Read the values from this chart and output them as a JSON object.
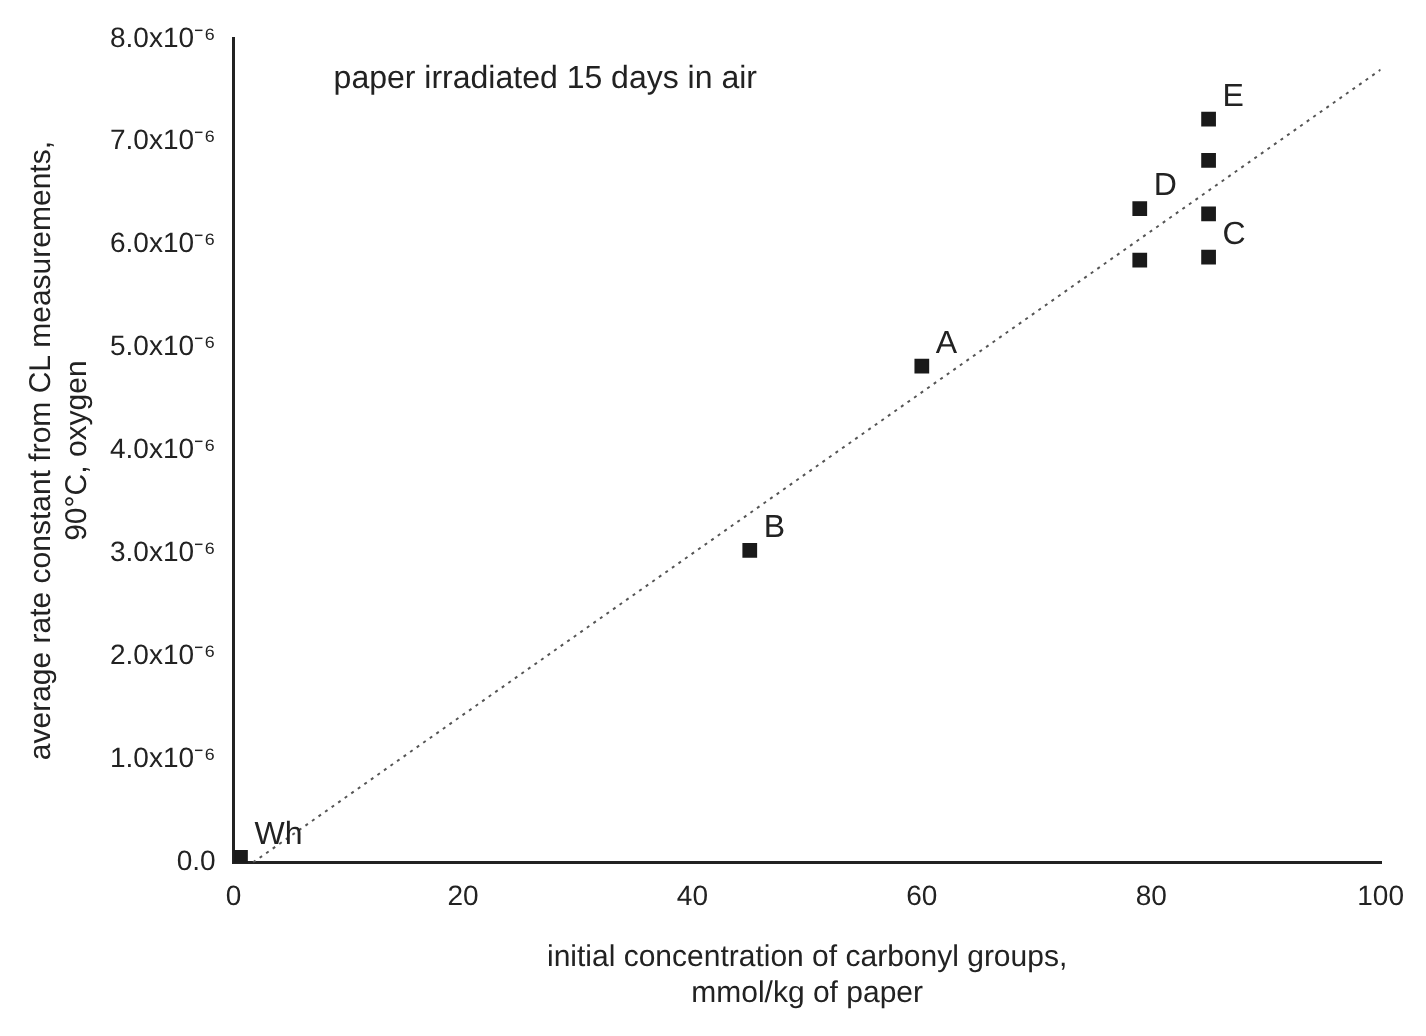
{
  "chart_data": {
    "type": "scatter",
    "xlabel": "initial concentration of carbonyl groups,\nmmol/kg of paper",
    "ylabel": "average rate constant from CL measurements,\n90°C, oxygen",
    "xlim": [
      0,
      100
    ],
    "xticks": [
      0,
      20,
      40,
      60,
      80,
      100
    ],
    "ylim": [
      0,
      8e-06
    ],
    "yticks": [
      {
        "value": 0,
        "label": "0.0"
      },
      {
        "value": 1e-06,
        "label": "1.0x10⁻⁶"
      },
      {
        "value": 2e-06,
        "label": "2.0x10⁻⁶"
      },
      {
        "value": 3e-06,
        "label": "3.0x10⁻⁶"
      },
      {
        "value": 4e-06,
        "label": "4.0x10⁻⁶"
      },
      {
        "value": 5e-06,
        "label": "5.0x10⁻⁶"
      },
      {
        "value": 6e-06,
        "label": "6.0x10⁻⁶"
      },
      {
        "value": 7e-06,
        "label": "7.0x10⁻⁶"
      },
      {
        "value": 8e-06,
        "label": "8.0x10⁻⁶"
      }
    ],
    "grid": false,
    "legend": false,
    "marker": "square",
    "series": [
      {
        "type": "scatter",
        "color": "#1a1a1a",
        "x": [
          0.6,
          45,
          60,
          79,
          79,
          85,
          85,
          85,
          85
        ],
        "values": [
          5e-08,
          3.03e-06,
          4.82e-06,
          5.85e-06,
          6.35e-06,
          5.88e-06,
          6.3e-06,
          6.82e-06,
          7.22e-06
        ]
      },
      {
        "type": "line",
        "color": "#555555",
        "line_style": "dotted",
        "marker": "none",
        "x": [
          1.7,
          100
        ],
        "values": [
          0,
          7.7e-06
        ]
      }
    ],
    "annotations": [
      "paper irradiated 15 days in air",
      {
        "text": "A",
        "x": 60,
        "y": 4.82e-06
      },
      {
        "text": "B",
        "x": 45,
        "y": 3.03e-06
      },
      {
        "text": "C",
        "x": 85,
        "y": 5.88e-06
      },
      {
        "text": "D",
        "x": 79,
        "y": 6.35e-06
      },
      {
        "text": "E",
        "x": 85,
        "y": 7.22e-06
      },
      {
        "text": "Wh",
        "x": 0.6,
        "y": 5e-08
      }
    ]
  }
}
